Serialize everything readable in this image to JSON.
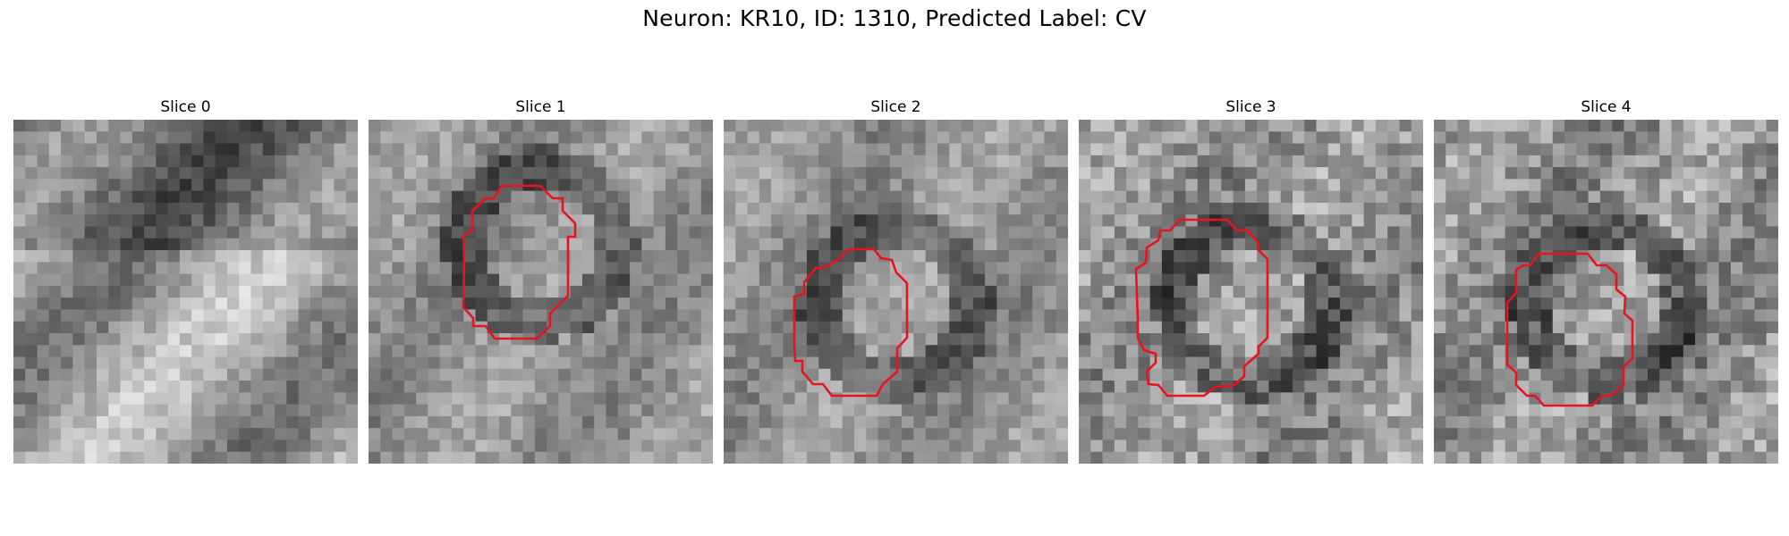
{
  "figure": {
    "title": "Neuron: KR10, ID: 1310, Predicted Label: CV"
  },
  "panels": [
    {
      "title": "Slice 0",
      "colormap": "gray",
      "has_roi": false,
      "seed": 11
    },
    {
      "title": "Slice 1",
      "colormap": "gray",
      "has_roi": true,
      "seed": 23
    },
    {
      "title": "Slice 2",
      "colormap": "gray",
      "has_roi": true,
      "seed": 37
    },
    {
      "title": "Slice 3",
      "colormap": "gray",
      "has_roi": true,
      "seed": 41
    },
    {
      "title": "Slice 4",
      "colormap": "gray",
      "has_roi": true,
      "seed": 59
    }
  ],
  "colors": {
    "roi_outline": "#e8141c",
    "background": "#ffffff"
  }
}
